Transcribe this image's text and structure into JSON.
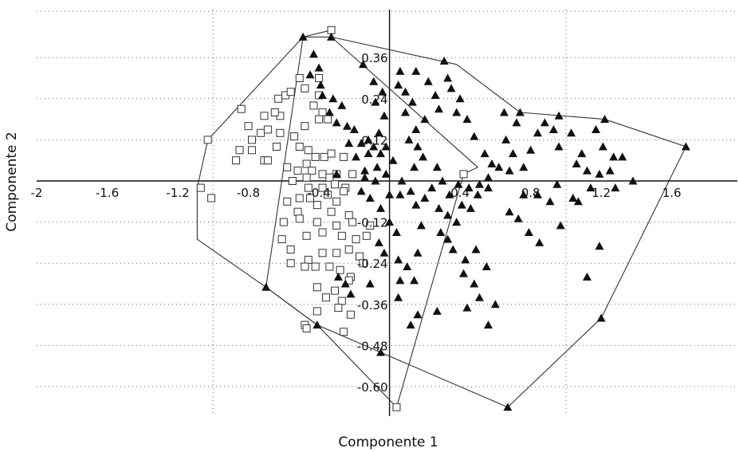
{
  "chart_data": {
    "type": "scatter",
    "title": "",
    "xlabel": "Componente 1",
    "ylabel": "Componente 2",
    "xlim": [
      -2.0,
      1.9
    ],
    "ylim": [
      -0.7,
      0.46
    ],
    "x_ticks": [
      -2,
      -1.6,
      -1.2,
      -0.8,
      -0.4,
      0,
      0.4,
      0.8,
      1.2,
      1.6
    ],
    "x_tick_labels": [
      "-2",
      "-1.6",
      "-1.2",
      "-0.8",
      "-0.4",
      "",
      "0.4",
      "0.8",
      "1.2",
      "1.6"
    ],
    "y_ticks": [
      0.36,
      0.24,
      0.12,
      -0.12,
      -0.24,
      -0.36,
      -0.48,
      -0.6
    ],
    "y_tick_labels": [
      "0.36",
      "0.24",
      "0.12",
      "-0.12",
      "-0.24",
      "-0.36",
      "-0.48",
      "-0.60"
    ],
    "grid": true,
    "series": [
      {
        "marker": "square-open",
        "color": "#333333",
        "points": [
          [
            -0.33,
            0.44
          ],
          [
            -1.07,
            -0.02
          ],
          [
            -1.03,
            0.12
          ],
          [
            -1.01,
            -0.05
          ],
          [
            -0.78,
            0.12
          ],
          [
            -0.8,
            0.16
          ],
          [
            -0.84,
            0.21
          ],
          [
            -0.71,
            0.19
          ],
          [
            -0.62,
            0.19
          ],
          [
            -0.73,
            0.14
          ],
          [
            -0.69,
            0.15
          ],
          [
            -0.78,
            0.09
          ],
          [
            -0.87,
            0.06
          ],
          [
            -0.85,
            0.09
          ],
          [
            -0.71,
            0.06
          ],
          [
            -0.69,
            0.06
          ],
          [
            -0.64,
            0.1
          ],
          [
            -0.62,
            0.14
          ],
          [
            -0.65,
            0.2
          ],
          [
            -0.63,
            0.24
          ],
          [
            -0.59,
            0.25
          ],
          [
            -0.56,
            0.26
          ],
          [
            -0.51,
            0.3
          ],
          [
            -0.48,
            0.27
          ],
          [
            -0.4,
            0.3
          ],
          [
            -0.4,
            0.25
          ],
          [
            -0.43,
            0.22
          ],
          [
            -0.38,
            0.2
          ],
          [
            -0.35,
            0.18
          ],
          [
            -0.4,
            0.18
          ],
          [
            -0.48,
            0.16
          ],
          [
            -0.54,
            0.13
          ],
          [
            -0.51,
            0.1
          ],
          [
            -0.46,
            0.09
          ],
          [
            -0.42,
            0.07
          ],
          [
            -0.37,
            0.07
          ],
          [
            -0.33,
            0.08
          ],
          [
            -0.26,
            0.07
          ],
          [
            -0.47,
            0.05
          ],
          [
            -0.52,
            0.03
          ],
          [
            -0.58,
            0.04
          ],
          [
            -0.44,
            0.03
          ],
          [
            -0.38,
            0.02
          ],
          [
            -0.3,
            0.02
          ],
          [
            -0.21,
            0.02
          ],
          [
            -0.55,
            0.0
          ],
          [
            -0.47,
            0.01
          ],
          [
            -0.34,
            0.01
          ],
          [
            -0.31,
            -0.01
          ],
          [
            -0.46,
            -0.02
          ],
          [
            -0.38,
            -0.02
          ],
          [
            -0.25,
            -0.02
          ],
          [
            -0.51,
            -0.05
          ],
          [
            -0.45,
            -0.05
          ],
          [
            -0.35,
            -0.04
          ],
          [
            -0.26,
            -0.03
          ],
          [
            -0.58,
            -0.06
          ],
          [
            -0.41,
            -0.07
          ],
          [
            -0.3,
            -0.06
          ],
          [
            -0.52,
            -0.09
          ],
          [
            -0.33,
            -0.09
          ],
          [
            -0.23,
            -0.1
          ],
          [
            -0.6,
            -0.12
          ],
          [
            -0.51,
            -0.11
          ],
          [
            -0.41,
            -0.12
          ],
          [
            -0.3,
            -0.13
          ],
          [
            -0.21,
            -0.12
          ],
          [
            -0.11,
            -0.13
          ],
          [
            -0.61,
            -0.17
          ],
          [
            -0.56,
            -0.2
          ],
          [
            -0.47,
            -0.16
          ],
          [
            -0.38,
            -0.15
          ],
          [
            -0.27,
            -0.16
          ],
          [
            -0.19,
            -0.17
          ],
          [
            -0.13,
            -0.16
          ],
          [
            -0.56,
            -0.24
          ],
          [
            -0.46,
            -0.23
          ],
          [
            -0.38,
            -0.21
          ],
          [
            -0.3,
            -0.21
          ],
          [
            -0.23,
            -0.2
          ],
          [
            -0.17,
            -0.22
          ],
          [
            -0.15,
            -0.24
          ],
          [
            -0.48,
            -0.25
          ],
          [
            -0.42,
            -0.25
          ],
          [
            -0.34,
            -0.25
          ],
          [
            -0.28,
            -0.26
          ],
          [
            -0.22,
            -0.28
          ],
          [
            -0.41,
            -0.31
          ],
          [
            -0.31,
            -0.32
          ],
          [
            -0.23,
            -0.29
          ],
          [
            -0.36,
            -0.34
          ],
          [
            -0.27,
            -0.35
          ],
          [
            -0.41,
            -0.38
          ],
          [
            -0.29,
            -0.37
          ],
          [
            -0.22,
            -0.39
          ],
          [
            -0.48,
            -0.42
          ],
          [
            -0.47,
            -0.43
          ],
          [
            -0.26,
            -0.44
          ],
          [
            0.04,
            -0.66
          ],
          [
            0.42,
            0.02
          ]
        ]
      },
      {
        "marker": "triangle-filled",
        "color": "#111111",
        "points": [
          [
            -0.49,
            0.42
          ],
          [
            -0.33,
            0.42
          ],
          [
            1.68,
            0.1
          ],
          [
            1.2,
            -0.4
          ],
          [
            0.67,
            -0.66
          ],
          [
            -0.05,
            -0.5
          ],
          [
            -0.41,
            -0.42
          ],
          [
            -0.7,
            -0.31
          ],
          [
            0.74,
            0.2
          ],
          [
            0.96,
            0.19
          ],
          [
            1.22,
            0.18
          ],
          [
            -0.43,
            0.37
          ],
          [
            -0.4,
            0.33
          ],
          [
            -0.45,
            0.31
          ],
          [
            -0.39,
            0.28
          ],
          [
            -0.38,
            0.25
          ],
          [
            -0.32,
            0.24
          ],
          [
            -0.27,
            0.22
          ],
          [
            -0.34,
            0.2
          ],
          [
            -0.3,
            0.17
          ],
          [
            -0.24,
            0.16
          ],
          [
            -0.2,
            0.15
          ],
          [
            -0.23,
            0.11
          ],
          [
            -0.16,
            0.11
          ],
          [
            -0.12,
            0.12
          ],
          [
            -0.09,
            0.1
          ],
          [
            -0.05,
            0.08
          ],
          [
            -0.12,
            0.08
          ],
          [
            -0.19,
            0.07
          ],
          [
            -0.14,
            0.03
          ],
          [
            -0.07,
            0.04
          ],
          [
            -0.02,
            0.02
          ],
          [
            -0.3,
            0.02
          ],
          [
            -0.14,
            0.01
          ],
          [
            -0.08,
            0.0
          ],
          [
            -0.15,
            0.34
          ],
          [
            -0.09,
            0.29
          ],
          [
            -0.08,
            0.23
          ],
          [
            -0.04,
            0.26
          ],
          [
            -0.03,
            0.19
          ],
          [
            -0.06,
            0.14
          ],
          [
            -0.02,
            0.1
          ],
          [
            0.06,
            0.32
          ],
          [
            0.05,
            0.28
          ],
          [
            0.09,
            0.26
          ],
          [
            0.13,
            0.23
          ],
          [
            0.09,
            0.2
          ],
          [
            0.15,
            0.15
          ],
          [
            0.2,
            0.18
          ],
          [
            0.11,
            0.12
          ],
          [
            0.16,
            0.1
          ],
          [
            0.19,
            0.07
          ],
          [
            0.14,
            0.04
          ],
          [
            0.07,
            0.0
          ],
          [
            0.02,
            0.06
          ],
          [
            0.15,
            0.32
          ],
          [
            0.22,
            0.29
          ],
          [
            0.26,
            0.25
          ],
          [
            0.28,
            0.21
          ],
          [
            0.31,
            0.35
          ],
          [
            0.33,
            0.3
          ],
          [
            0.35,
            0.27
          ],
          [
            0.4,
            0.24
          ],
          [
            0.38,
            0.2
          ],
          [
            0.44,
            0.18
          ],
          [
            0.48,
            0.13
          ],
          [
            0.54,
            0.08
          ],
          [
            0.58,
            0.05
          ],
          [
            0.62,
            0.04
          ],
          [
            0.56,
            0.01
          ],
          [
            0.51,
            -0.01
          ],
          [
            0.45,
            -0.02
          ],
          [
            0.39,
            -0.01
          ],
          [
            0.34,
            -0.04
          ],
          [
            0.3,
            0.0
          ],
          [
            0.27,
            0.04
          ],
          [
            0.24,
            -0.02
          ],
          [
            0.2,
            -0.05
          ],
          [
            0.28,
            -0.08
          ],
          [
            0.33,
            -0.1
          ],
          [
            0.38,
            -0.12
          ],
          [
            0.41,
            -0.07
          ],
          [
            0.46,
            -0.08
          ],
          [
            0.5,
            -0.04
          ],
          [
            0.56,
            -0.02
          ],
          [
            0.29,
            -0.15
          ],
          [
            0.33,
            -0.17
          ],
          [
            0.36,
            -0.2
          ],
          [
            0.43,
            -0.23
          ],
          [
            0.49,
            -0.2
          ],
          [
            0.55,
            -0.25
          ],
          [
            0.42,
            -0.27
          ],
          [
            0.48,
            -0.3
          ],
          [
            0.51,
            -0.34
          ],
          [
            0.6,
            -0.36
          ],
          [
            0.44,
            -0.37
          ],
          [
            0.56,
            -0.42
          ],
          [
            0.27,
            -0.38
          ],
          [
            0.16,
            -0.39
          ],
          [
            0.12,
            -0.42
          ],
          [
            0.05,
            -0.34
          ],
          [
            0.06,
            -0.29
          ],
          [
            -0.11,
            -0.3
          ],
          [
            -0.22,
            -0.33
          ],
          [
            -0.25,
            -0.3
          ],
          [
            -0.29,
            -0.28
          ],
          [
            0.05,
            -0.23
          ],
          [
            0.1,
            -0.25
          ],
          [
            0.14,
            -0.29
          ],
          [
            0.16,
            -0.21
          ],
          [
            0.04,
            -0.15
          ],
          [
            0.0,
            -0.12
          ],
          [
            -0.05,
            -0.08
          ],
          [
            -0.11,
            -0.05
          ],
          [
            -0.16,
            -0.03
          ],
          [
            0.0,
            -0.04
          ],
          [
            0.06,
            -0.04
          ],
          [
            0.12,
            -0.03
          ],
          [
            0.15,
            -0.07
          ],
          [
            0.18,
            -0.13
          ],
          [
            -0.03,
            -0.21
          ],
          [
            -0.06,
            -0.18
          ],
          [
            0.65,
            0.2
          ],
          [
            0.72,
            0.17
          ],
          [
            0.66,
            0.12
          ],
          [
            0.7,
            0.08
          ],
          [
            0.68,
            0.03
          ],
          [
            0.76,
            0.04
          ],
          [
            0.8,
            0.09
          ],
          [
            0.84,
            0.14
          ],
          [
            0.88,
            0.17
          ],
          [
            0.93,
            0.15
          ],
          [
            0.96,
            0.1
          ],
          [
            1.03,
            0.14
          ],
          [
            1.09,
            0.08
          ],
          [
            1.17,
            0.15
          ],
          [
            1.21,
            0.1
          ],
          [
            1.06,
            0.05
          ],
          [
            1.12,
            0.03
          ],
          [
            1.19,
            0.02
          ],
          [
            1.14,
            -0.02
          ],
          [
            1.04,
            -0.05
          ],
          [
            0.95,
            -0.01
          ],
          [
            0.91,
            -0.06
          ],
          [
            0.84,
            -0.04
          ],
          [
            0.76,
            -0.04
          ],
          [
            0.68,
            -0.09
          ],
          [
            0.85,
            -0.18
          ],
          [
            0.97,
            -0.13
          ],
          [
            1.07,
            -0.06
          ],
          [
            1.25,
            0.03
          ],
          [
            1.32,
            0.07
          ],
          [
            1.38,
            0.0
          ],
          [
            1.28,
            -0.02
          ],
          [
            1.27,
            0.07
          ],
          [
            1.19,
            -0.19
          ],
          [
            1.12,
            -0.28
          ],
          [
            0.79,
            -0.15
          ],
          [
            0.73,
            -0.11
          ]
        ]
      }
    ],
    "hulls": [
      {
        "style": "outline",
        "color": "#333333",
        "points": [
          [
            -0.33,
            0.44
          ],
          [
            -0.49,
            0.42
          ],
          [
            -1.03,
            0.12
          ],
          [
            -1.09,
            -0.02
          ],
          [
            -1.09,
            -0.17
          ],
          [
            -0.7,
            -0.31
          ],
          [
            -0.41,
            -0.42
          ],
          [
            -0.05,
            -0.5
          ],
          [
            0.67,
            -0.66
          ],
          [
            1.2,
            -0.4
          ],
          [
            1.68,
            0.1
          ],
          [
            1.22,
            0.18
          ],
          [
            0.74,
            0.2
          ],
          [
            0.38,
            0.34
          ],
          [
            -0.33,
            0.42
          ]
        ]
      },
      {
        "style": "outline",
        "color": "#333333",
        "points": [
          [
            -0.49,
            0.42
          ],
          [
            -0.33,
            0.42
          ],
          [
            0.5,
            0.04
          ],
          [
            0.42,
            0.02
          ],
          [
            0.04,
            -0.66
          ],
          [
            -0.41,
            -0.42
          ],
          [
            -0.7,
            -0.31
          ],
          [
            -0.49,
            0.42
          ]
        ]
      }
    ]
  }
}
